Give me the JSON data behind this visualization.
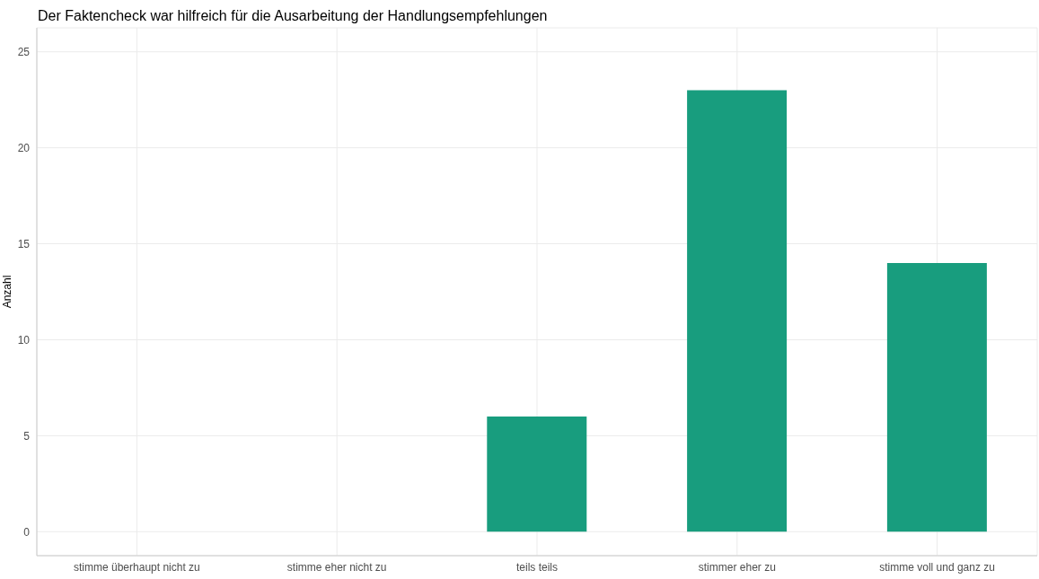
{
  "chart_data": {
    "type": "bar",
    "title": "Der Faktencheck war hilfreich für die Ausarbeitung der Handlungsempfehlungen",
    "ylabel": "Anzahl",
    "categories": [
      "stimme überhaupt nicht zu",
      "stimme eher nicht zu",
      "teils teils",
      "stimmer eher zu",
      "stimme voll und ganz zu"
    ],
    "values": [
      0,
      0,
      6,
      23,
      14
    ],
    "color": "#189d7e",
    "ylim": [
      -1.25,
      26.25
    ],
    "yticks": [
      0,
      5,
      10,
      15,
      20,
      25
    ],
    "grid": true
  }
}
